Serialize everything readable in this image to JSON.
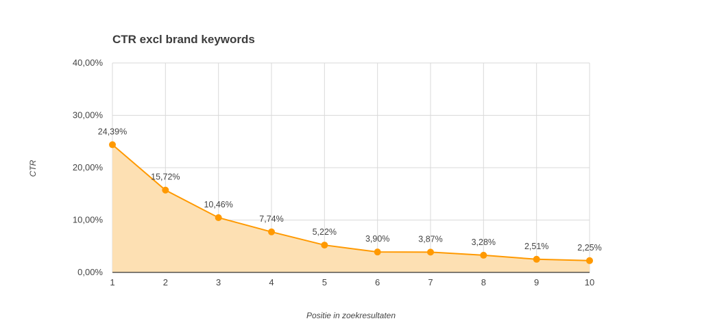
{
  "chart_data": {
    "type": "area",
    "title": "CTR excl brand keywords",
    "xlabel": "Positie in zoekresultaten",
    "ylabel": "CTR",
    "x": [
      1,
      2,
      3,
      4,
      5,
      6,
      7,
      8,
      9,
      10
    ],
    "x_tick_labels": [
      "1",
      "2",
      "3",
      "4",
      "5",
      "6",
      "7",
      "8",
      "9",
      "10"
    ],
    "ylim": [
      0,
      40
    ],
    "y_ticks": [
      0,
      10,
      20,
      30,
      40
    ],
    "y_tick_labels": [
      "0,00%",
      "10,00%",
      "20,00%",
      "30,00%",
      "40,00%"
    ],
    "series": [
      {
        "values": [
          24.39,
          15.72,
          10.46,
          7.74,
          5.22,
          3.9,
          3.87,
          3.28,
          2.51,
          2.25
        ],
        "data_labels": [
          "24,39%",
          "15,72%",
          "10,46%",
          "7,74%",
          "5,22%",
          "3,90%",
          "3,87%",
          "3,28%",
          "2,51%",
          "2,25%"
        ],
        "line_color": "#ff9900",
        "fill_color": "#fde0b3"
      }
    ],
    "grid": true,
    "legend": "none"
  }
}
